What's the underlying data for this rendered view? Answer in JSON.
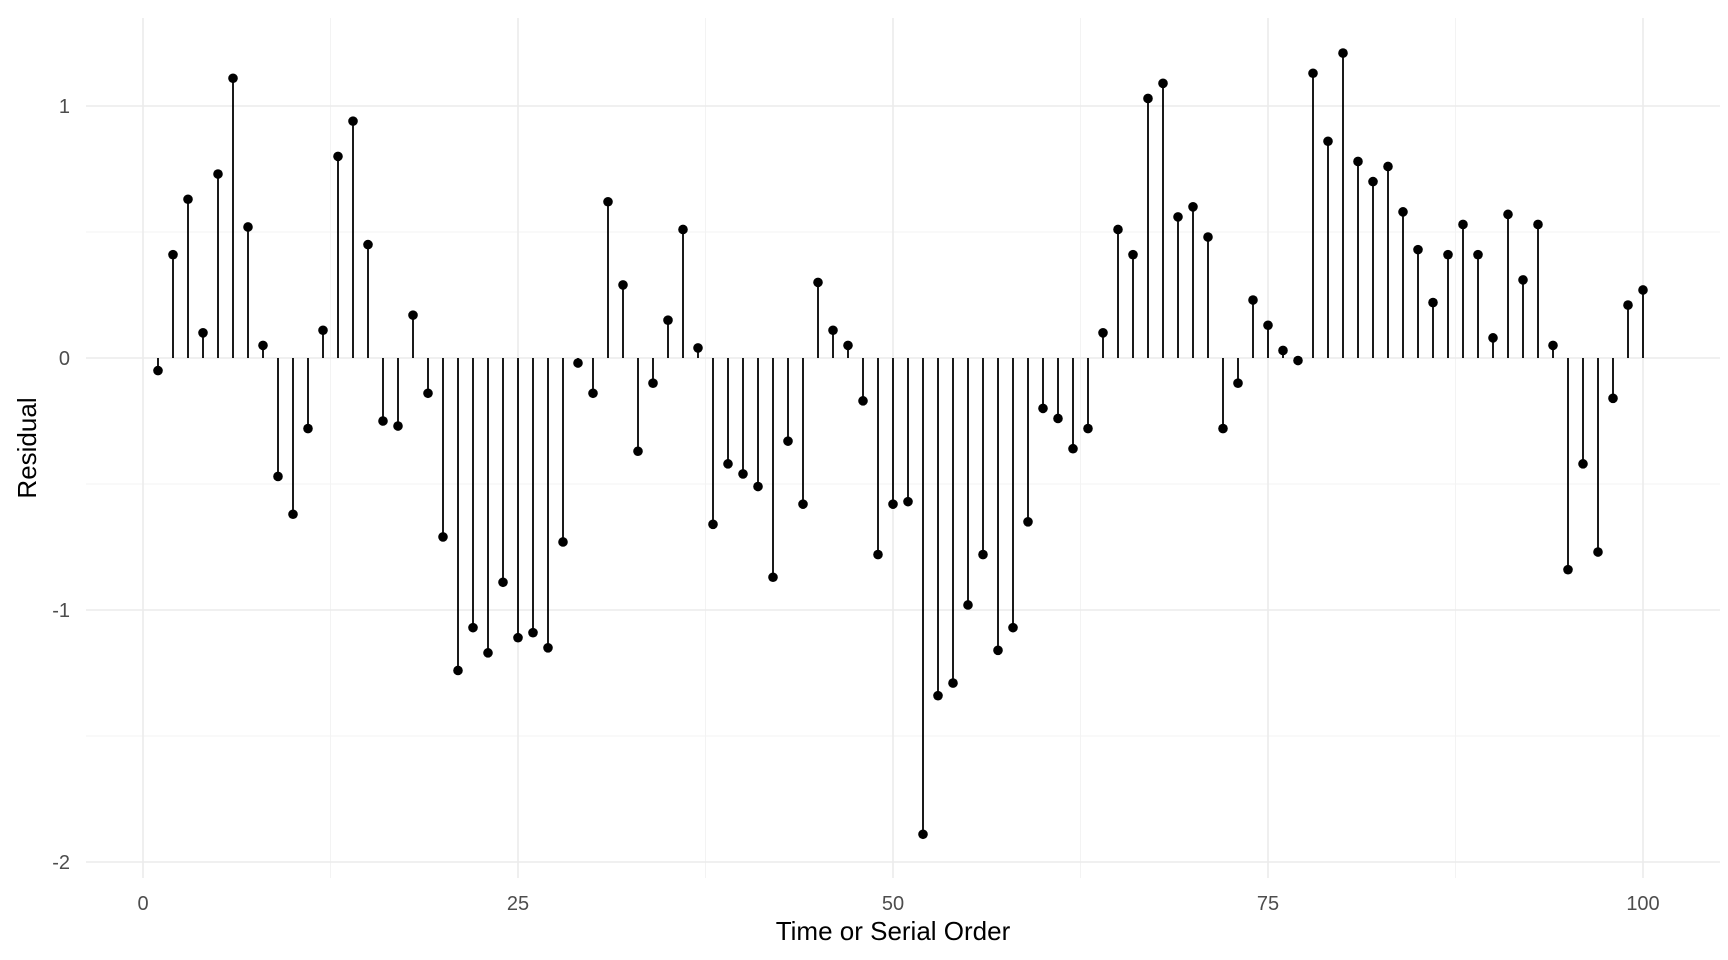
{
  "chart_data": {
    "type": "scatter",
    "style": "lollipop",
    "xlabel": "Time or Serial Order",
    "ylabel": "Residual",
    "xlim": [
      0,
      100
    ],
    "ylim": [
      -2,
      1.2
    ],
    "x_ticks": [
      0,
      25,
      50,
      75,
      100
    ],
    "y_ticks": [
      -2,
      -1,
      0,
      1
    ],
    "grid": true,
    "legend": "none",
    "point_color": "#000000",
    "x": [
      1,
      2,
      3,
      4,
      5,
      6,
      7,
      8,
      9,
      10,
      11,
      12,
      13,
      14,
      15,
      16,
      17,
      18,
      19,
      20,
      21,
      22,
      23,
      24,
      25,
      26,
      27,
      28,
      29,
      30,
      31,
      32,
      33,
      34,
      35,
      36,
      37,
      38,
      39,
      40,
      41,
      42,
      43,
      44,
      45,
      46,
      47,
      48,
      49,
      50,
      51,
      52,
      53,
      54,
      55,
      56,
      57,
      58,
      59,
      60,
      61,
      62,
      63,
      64,
      65,
      66,
      67,
      68,
      69,
      70,
      71,
      72,
      73,
      74,
      75,
      76,
      77,
      78,
      79,
      80,
      81,
      82,
      83,
      84,
      85,
      86,
      87,
      88,
      89,
      90,
      91,
      92,
      93,
      94,
      95,
      96,
      97,
      98,
      99,
      100
    ],
    "values": [
      -0.05,
      0.41,
      0.63,
      0.1,
      0.73,
      1.11,
      0.52,
      0.05,
      -0.47,
      -0.62,
      -0.28,
      0.11,
      0.8,
      0.94,
      0.45,
      -0.25,
      -0.27,
      0.17,
      -0.14,
      -0.71,
      -1.24,
      -1.07,
      -1.17,
      -0.89,
      -1.11,
      -1.09,
      -1.15,
      -0.73,
      -0.02,
      -0.14,
      0.62,
      0.29,
      -0.37,
      -0.1,
      0.15,
      0.51,
      0.04,
      -0.66,
      -0.42,
      -0.46,
      -0.51,
      -0.87,
      -0.33,
      -0.58,
      0.3,
      0.11,
      0.05,
      -0.17,
      -0.78,
      -0.58,
      -0.57,
      -1.89,
      -1.34,
      -1.29,
      -0.98,
      -0.78,
      -1.16,
      -1.07,
      -0.65,
      -0.2,
      -0.24,
      -0.36,
      -0.28,
      0.1,
      0.51,
      0.41,
      1.03,
      1.09,
      0.56,
      0.6,
      0.48,
      -0.28,
      -0.1,
      0.23,
      0.13,
      0.03,
      -0.01,
      1.13,
      0.86,
      1.21,
      0.78,
      0.7,
      0.76,
      0.58,
      0.43,
      0.22,
      0.41,
      0.53,
      0.41,
      0.08,
      0.57,
      0.31,
      0.53,
      0.05,
      -0.84,
      -0.42,
      -0.77,
      -0.16,
      0.21,
      0.27
    ]
  }
}
